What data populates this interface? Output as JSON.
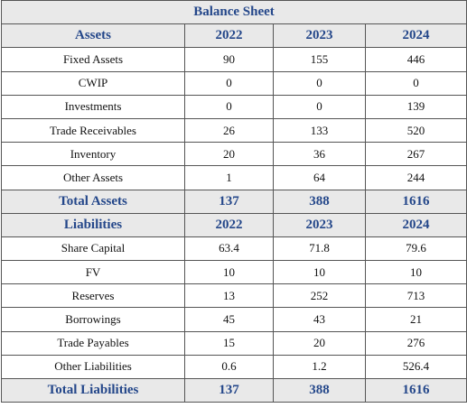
{
  "title": "Balance Sheet",
  "assets": {
    "header": [
      "Assets",
      2022,
      2023,
      2024
    ],
    "rows": [
      [
        "Fixed Assets",
        90,
        155,
        446
      ],
      [
        "CWIP",
        0,
        0,
        0
      ],
      [
        "Investments",
        0,
        0,
        139
      ],
      [
        "Trade Receivables",
        26,
        133,
        520
      ],
      [
        "Inventory",
        20,
        36,
        267
      ],
      [
        "Other Assets",
        1,
        64,
        244
      ]
    ],
    "total": [
      "Total Assets",
      137,
      388,
      1616
    ]
  },
  "liabilities": {
    "header": [
      "Liabilities",
      2022,
      2023,
      2024
    ],
    "rows": [
      [
        "Share Capital",
        63.4,
        71.8,
        79.6
      ],
      [
        "FV",
        10,
        10,
        10
      ],
      [
        "Reserves",
        13,
        252,
        713
      ],
      [
        "Borrowings",
        45,
        43,
        21
      ],
      [
        "Trade Payables",
        15,
        20,
        276
      ],
      [
        "Other Liabilities",
        0.6,
        1.2,
        526.4
      ]
    ],
    "total": [
      "Total Liabilities",
      137,
      388,
      1616
    ]
  }
}
